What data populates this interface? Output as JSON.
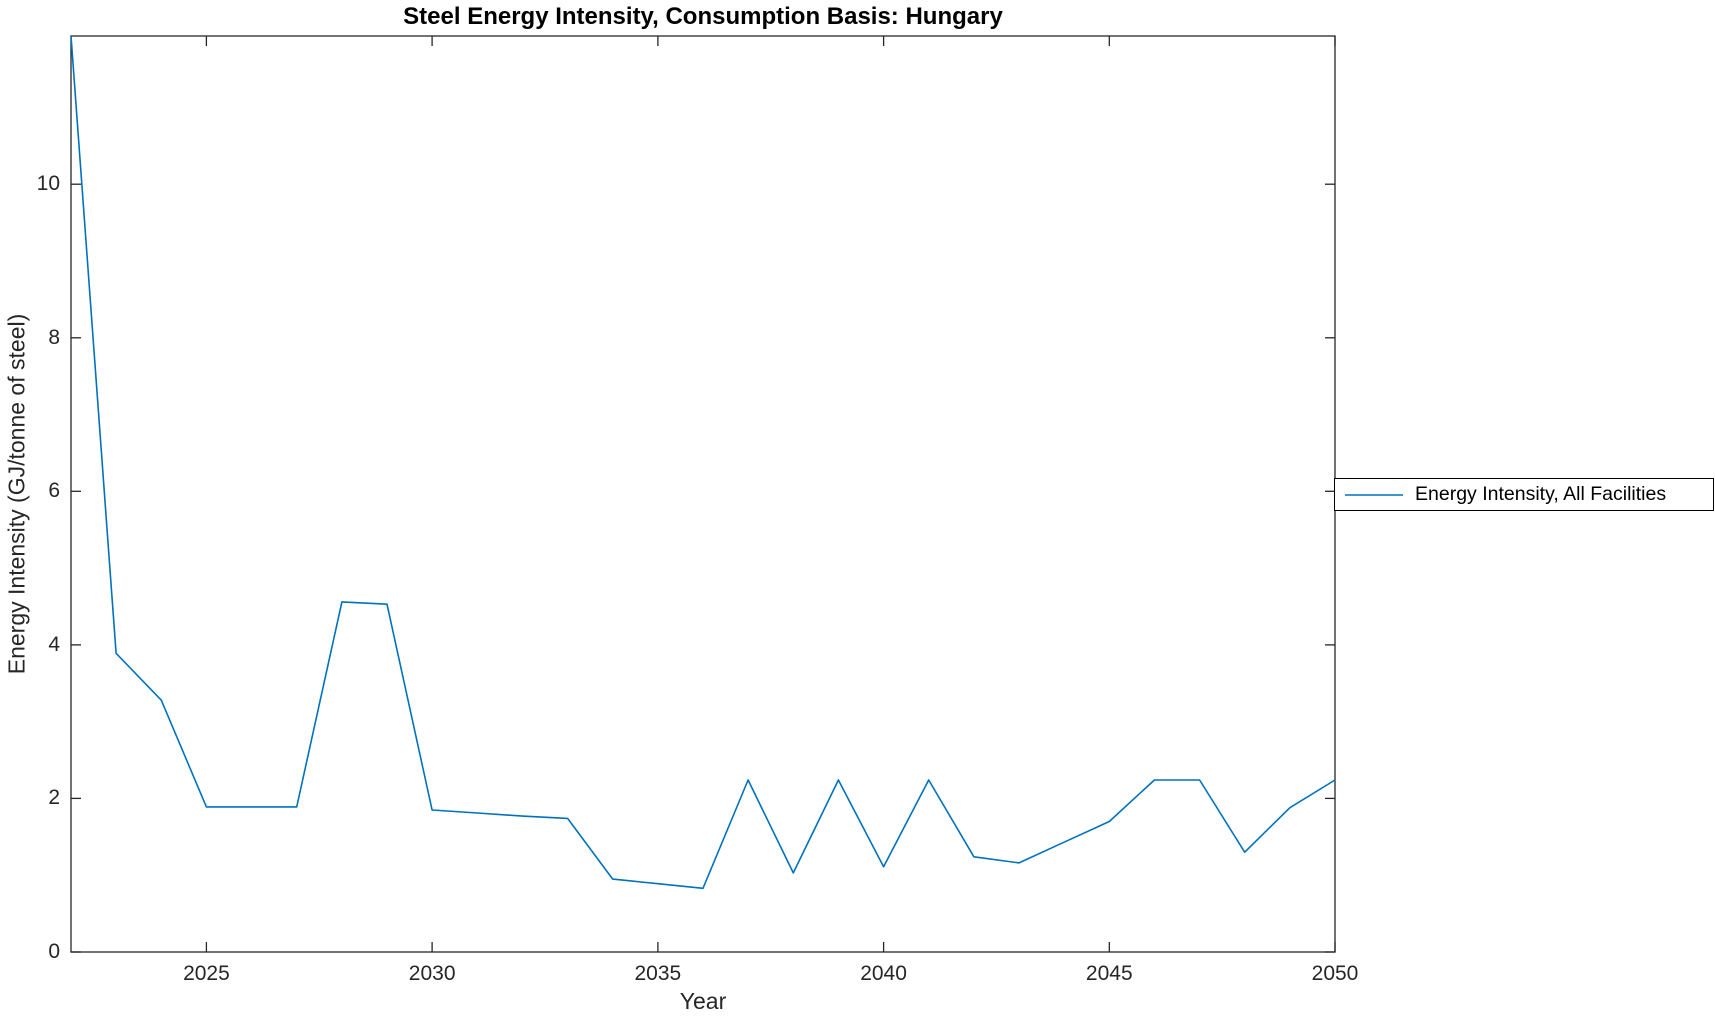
{
  "chart_data": {
    "type": "line",
    "title": "Steel Energy Intensity, Consumption Basis: Hungary",
    "xlabel": "Year",
    "ylabel": "Energy Intensity (GJ/tonne of steel)",
    "xlim": [
      2022,
      2050
    ],
    "ylim": [
      0,
      11.93
    ],
    "xticks": [
      2025,
      2030,
      2035,
      2040,
      2045,
      2050
    ],
    "yticks": [
      0,
      2,
      4,
      6,
      8,
      10
    ],
    "grid": false,
    "box": true,
    "line_color": "#0072BD",
    "axis_color": "#262626",
    "legend": {
      "position": "right-outside",
      "entries": [
        "Energy Intensity, All Facilities"
      ]
    },
    "series": [
      {
        "name": "Energy Intensity, All Facilities",
        "x": [
          2022,
          2023,
          2024,
          2025,
          2026,
          2027,
          2028,
          2029,
          2030,
          2031,
          2032,
          2033,
          2034,
          2035,
          2036,
          2037,
          2038,
          2039,
          2040,
          2041,
          2042,
          2043,
          2044,
          2045,
          2046,
          2047,
          2048,
          2049,
          2050
        ],
        "values": [
          11.93,
          3.89,
          3.28,
          1.89,
          1.89,
          1.89,
          4.56,
          4.53,
          1.85,
          1.81,
          1.77,
          1.74,
          0.95,
          0.89,
          0.83,
          2.24,
          1.03,
          2.24,
          1.11,
          2.24,
          1.24,
          1.16,
          1.43,
          1.7,
          2.24,
          2.24,
          1.3,
          1.88,
          2.24
        ]
      }
    ]
  }
}
